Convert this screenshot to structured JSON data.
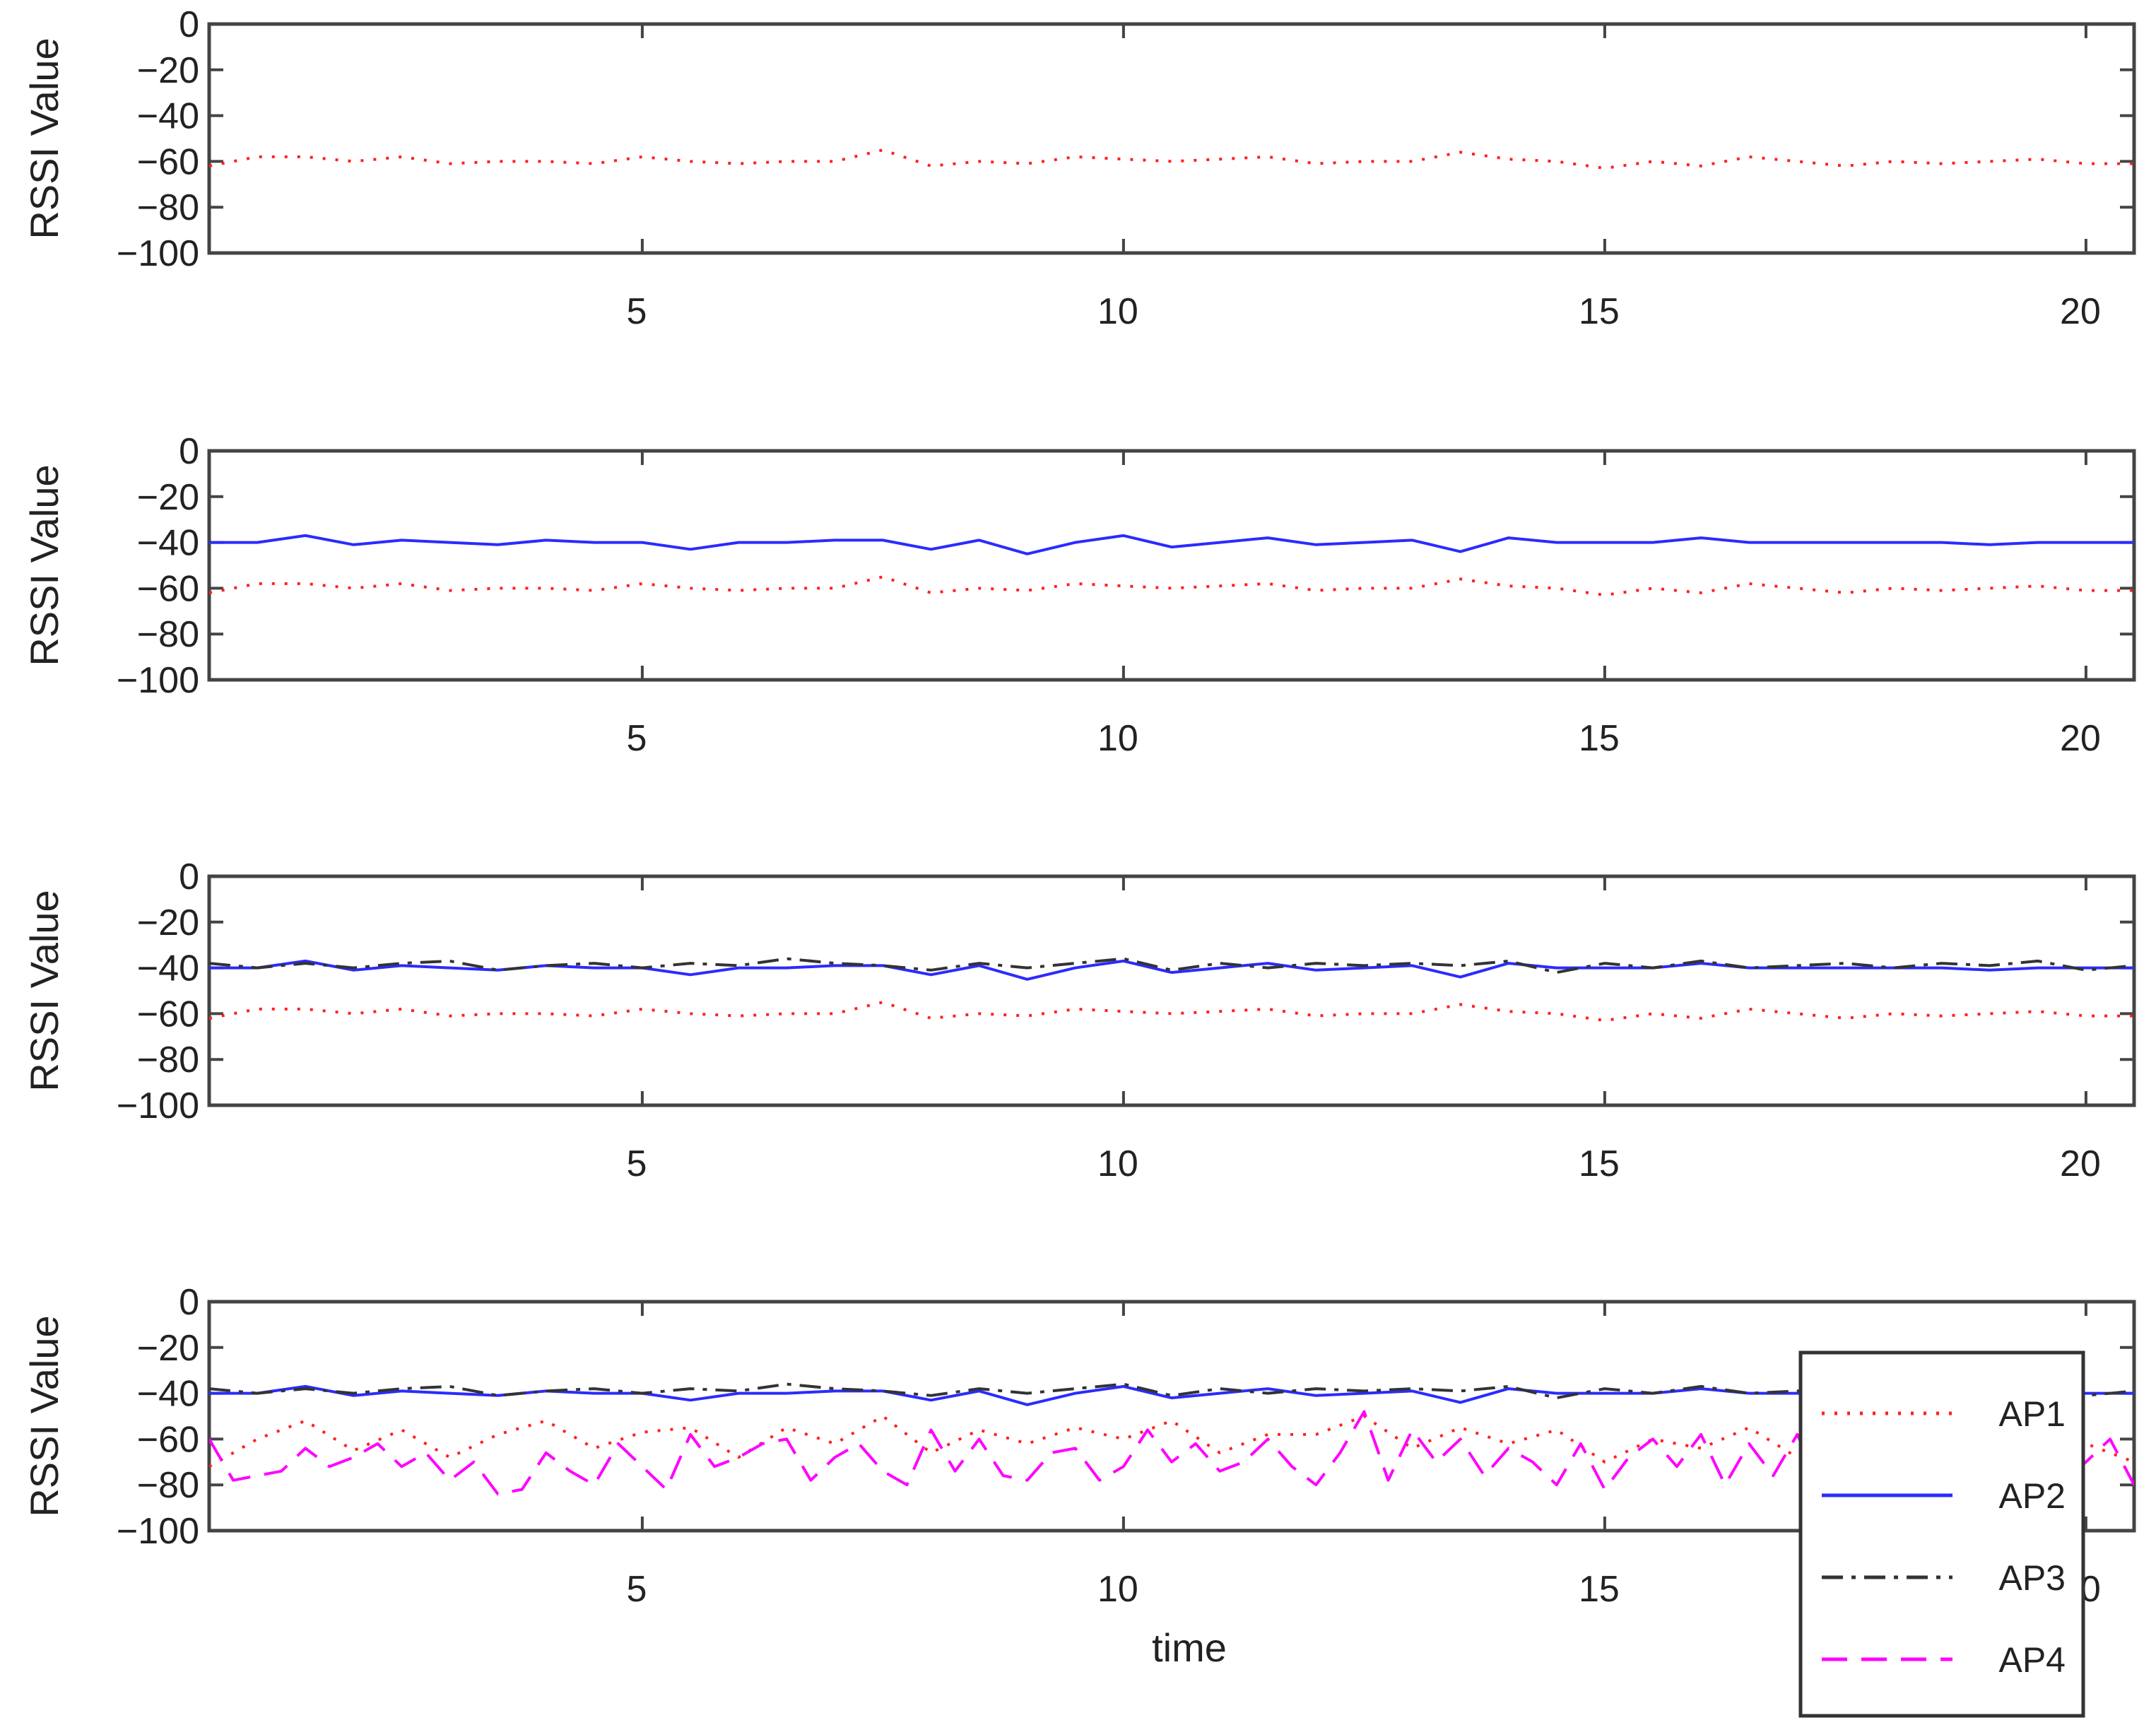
{
  "chart_data": [
    {
      "type": "line",
      "ylabel": "RSSI Value",
      "xlabel": "",
      "xlim": [
        0.5,
        20.5
      ],
      "ylim": [
        -100,
        0
      ],
      "xticks": [
        "5",
        "10",
        "15",
        "20"
      ],
      "yticks": [
        "0",
        "−20",
        "−40",
        "−60",
        "−80",
        "−100"
      ],
      "series": [
        {
          "key": "AP1",
          "color": "#ff2020",
          "dash": "dotted",
          "x": [
            0.5,
            1,
            1.5,
            2,
            2.5,
            3,
            3.5,
            4,
            4.5,
            5,
            5.5,
            6,
            6.5,
            7,
            7.5,
            8,
            8.5,
            9,
            9.5,
            10,
            10.5,
            11,
            11.5,
            12,
            12.5,
            13,
            13.5,
            14,
            14.5,
            15,
            15.5,
            16,
            16.5,
            17,
            17.5,
            18,
            18.5,
            19,
            19.5,
            20,
            20.5
          ],
          "y": [
            -62,
            -58,
            -58,
            -60,
            -58,
            -61,
            -60,
            -60,
            -61,
            -58,
            -60,
            -61,
            -60,
            -60,
            -55,
            -62,
            -60,
            -61,
            -58,
            -59,
            -60,
            -59,
            -58,
            -61,
            -60,
            -60,
            -56,
            -59,
            -60,
            -63,
            -60,
            -62,
            -58,
            -60,
            -62,
            -60,
            -61,
            -60,
            -59,
            -61,
            -61
          ]
        }
      ]
    },
    {
      "type": "line",
      "ylabel": "RSSI Value",
      "xlabel": "",
      "xlim": [
        0.5,
        20.5
      ],
      "ylim": [
        -100,
        0
      ],
      "xticks": [
        "5",
        "10",
        "15",
        "20"
      ],
      "yticks": [
        "0",
        "−20",
        "−40",
        "−60",
        "−80",
        "−100"
      ],
      "series": [
        {
          "key": "AP1",
          "color": "#ff2020",
          "dash": "dotted",
          "x": [
            0.5,
            1,
            1.5,
            2,
            2.5,
            3,
            3.5,
            4,
            4.5,
            5,
            5.5,
            6,
            6.5,
            7,
            7.5,
            8,
            8.5,
            9,
            9.5,
            10,
            10.5,
            11,
            11.5,
            12,
            12.5,
            13,
            13.5,
            14,
            14.5,
            15,
            15.5,
            16,
            16.5,
            17,
            17.5,
            18,
            18.5,
            19,
            19.5,
            20,
            20.5
          ],
          "y": [
            -62,
            -58,
            -58,
            -60,
            -58,
            -61,
            -60,
            -60,
            -61,
            -58,
            -60,
            -61,
            -60,
            -60,
            -55,
            -62,
            -60,
            -61,
            -58,
            -59,
            -60,
            -59,
            -58,
            -61,
            -60,
            -60,
            -56,
            -59,
            -60,
            -63,
            -60,
            -62,
            -58,
            -60,
            -62,
            -60,
            -61,
            -60,
            -59,
            -61,
            -61
          ]
        },
        {
          "key": "AP2",
          "color": "#2b2bff",
          "dash": "solid",
          "x": [
            0.5,
            1,
            1.5,
            2,
            2.5,
            3,
            3.5,
            4,
            4.5,
            5,
            5.5,
            6,
            6.5,
            7,
            7.5,
            8,
            8.5,
            9,
            9.5,
            10,
            10.5,
            11,
            11.5,
            12,
            12.5,
            13,
            13.5,
            14,
            14.5,
            15,
            15.5,
            16,
            16.5,
            17,
            17.5,
            18,
            18.5,
            19,
            19.5,
            20,
            20.5
          ],
          "y": [
            -40,
            -40,
            -37,
            -41,
            -39,
            -40,
            -41,
            -39,
            -40,
            -40,
            -43,
            -40,
            -40,
            -39,
            -39,
            -43,
            -39,
            -45,
            -40,
            -37,
            -42,
            -40,
            -38,
            -41,
            -40,
            -39,
            -44,
            -38,
            -40,
            -40,
            -40,
            -38,
            -40,
            -40,
            -40,
            -40,
            -40,
            -41,
            -40,
            -40,
            -40
          ]
        }
      ]
    },
    {
      "type": "line",
      "ylabel": "RSSI Value",
      "xlabel": "",
      "xlim": [
        0.5,
        20.5
      ],
      "ylim": [
        -100,
        0
      ],
      "xticks": [
        "5",
        "10",
        "15",
        "20"
      ],
      "yticks": [
        "0",
        "−20",
        "−40",
        "−60",
        "−80",
        "−100"
      ],
      "series": [
        {
          "key": "AP1",
          "color": "#ff2020",
          "dash": "dotted",
          "x": [
            0.5,
            1,
            1.5,
            2,
            2.5,
            3,
            3.5,
            4,
            4.5,
            5,
            5.5,
            6,
            6.5,
            7,
            7.5,
            8,
            8.5,
            9,
            9.5,
            10,
            10.5,
            11,
            11.5,
            12,
            12.5,
            13,
            13.5,
            14,
            14.5,
            15,
            15.5,
            16,
            16.5,
            17,
            17.5,
            18,
            18.5,
            19,
            19.5,
            20,
            20.5
          ],
          "y": [
            -62,
            -58,
            -58,
            -60,
            -58,
            -61,
            -60,
            -60,
            -61,
            -58,
            -60,
            -61,
            -60,
            -60,
            -55,
            -62,
            -60,
            -61,
            -58,
            -59,
            -60,
            -59,
            -58,
            -61,
            -60,
            -60,
            -56,
            -59,
            -60,
            -63,
            -60,
            -62,
            -58,
            -60,
            -62,
            -60,
            -61,
            -60,
            -59,
            -61,
            -61
          ]
        },
        {
          "key": "AP2",
          "color": "#2b2bff",
          "dash": "solid",
          "x": [
            0.5,
            1,
            1.5,
            2,
            2.5,
            3,
            3.5,
            4,
            4.5,
            5,
            5.5,
            6,
            6.5,
            7,
            7.5,
            8,
            8.5,
            9,
            9.5,
            10,
            10.5,
            11,
            11.5,
            12,
            12.5,
            13,
            13.5,
            14,
            14.5,
            15,
            15.5,
            16,
            16.5,
            17,
            17.5,
            18,
            18.5,
            19,
            19.5,
            20,
            20.5
          ],
          "y": [
            -40,
            -40,
            -37,
            -41,
            -39,
            -40,
            -41,
            -39,
            -40,
            -40,
            -43,
            -40,
            -40,
            -39,
            -39,
            -43,
            -39,
            -45,
            -40,
            -37,
            -42,
            -40,
            -38,
            -41,
            -40,
            -39,
            -44,
            -38,
            -40,
            -40,
            -40,
            -38,
            -40,
            -40,
            -40,
            -40,
            -40,
            -41,
            -40,
            -40,
            -40
          ]
        },
        {
          "key": "AP3",
          "color": "#333333",
          "dash": "dashdot",
          "x": [
            0.5,
            1,
            1.5,
            2,
            2.5,
            3,
            3.5,
            4,
            4.5,
            5,
            5.5,
            6,
            6.5,
            7,
            7.5,
            8,
            8.5,
            9,
            9.5,
            10,
            10.5,
            11,
            11.5,
            12,
            12.5,
            13,
            13.5,
            14,
            14.5,
            15,
            15.5,
            16,
            16.5,
            17,
            17.5,
            18,
            18.5,
            19,
            19.5,
            20,
            20.5
          ],
          "y": [
            -38,
            -40,
            -38,
            -40,
            -38,
            -37,
            -41,
            -39,
            -38,
            -40,
            -38,
            -39,
            -36,
            -38,
            -39,
            -41,
            -38,
            -40,
            -38,
            -36,
            -41,
            -38,
            -40,
            -38,
            -39,
            -38,
            -39,
            -37,
            -42,
            -38,
            -40,
            -37,
            -40,
            -39,
            -38,
            -40,
            -38,
            -39,
            -37,
            -41,
            -39
          ]
        }
      ]
    },
    {
      "type": "line",
      "ylabel": "RSSI Value",
      "xlabel": "time",
      "xlim": [
        0.5,
        20.5
      ],
      "ylim": [
        -100,
        0
      ],
      "xticks": [
        "5",
        "10",
        "15",
        "20"
      ],
      "yticks": [
        "0",
        "−20",
        "−40",
        "−60",
        "−80",
        "−100"
      ],
      "legend": {
        "position": "bottom-right",
        "entries": [
          "AP1",
          "AP2",
          "AP3",
          "AP4"
        ]
      },
      "series": [
        {
          "key": "AP1",
          "color": "#ff2020",
          "dash": "dotted",
          "x": [
            0.5,
            1,
            1.5,
            2,
            2.5,
            3,
            3.5,
            4,
            4.5,
            5,
            5.5,
            6,
            6.5,
            7,
            7.5,
            8,
            8.5,
            9,
            9.5,
            10,
            10.5,
            11,
            11.5,
            12,
            12.5,
            13,
            13.5,
            14,
            14.5,
            15,
            15.5,
            16,
            16.5,
            17,
            17.5,
            18,
            18.5,
            19,
            19.5,
            20,
            20.5
          ],
          "y": [
            -72,
            -60,
            -52,
            -65,
            -56,
            -68,
            -58,
            -52,
            -64,
            -57,
            -55,
            -68,
            -55,
            -62,
            -50,
            -66,
            -56,
            -62,
            -55,
            -60,
            -52,
            -66,
            -58,
            -58,
            -50,
            -64,
            -55,
            -62,
            -56,
            -70,
            -60,
            -64,
            -55,
            -68,
            -56,
            -62,
            -58,
            -60,
            -55,
            -62,
            -70
          ]
        },
        {
          "key": "AP2",
          "color": "#2b2bff",
          "dash": "solid",
          "x": [
            0.5,
            1,
            1.5,
            2,
            2.5,
            3,
            3.5,
            4,
            4.5,
            5,
            5.5,
            6,
            6.5,
            7,
            7.5,
            8,
            8.5,
            9,
            9.5,
            10,
            10.5,
            11,
            11.5,
            12,
            12.5,
            13,
            13.5,
            14,
            14.5,
            15,
            15.5,
            16,
            16.5,
            17,
            17.5,
            18,
            18.5,
            19,
            19.5,
            20,
            20.5
          ],
          "y": [
            -40,
            -40,
            -37,
            -41,
            -39,
            -40,
            -41,
            -39,
            -40,
            -40,
            -43,
            -40,
            -40,
            -39,
            -39,
            -43,
            -39,
            -45,
            -40,
            -37,
            -42,
            -40,
            -38,
            -41,
            -40,
            -39,
            -44,
            -38,
            -40,
            -40,
            -40,
            -38,
            -40,
            -40,
            -40,
            -40,
            -40,
            -41,
            -40,
            -40,
            -40
          ]
        },
        {
          "key": "AP3",
          "color": "#333333",
          "dash": "dashdot",
          "x": [
            0.5,
            1,
            1.5,
            2,
            2.5,
            3,
            3.5,
            4,
            4.5,
            5,
            5.5,
            6,
            6.5,
            7,
            7.5,
            8,
            8.5,
            9,
            9.5,
            10,
            10.5,
            11,
            11.5,
            12,
            12.5,
            13,
            13.5,
            14,
            14.5,
            15,
            15.5,
            16,
            16.5,
            17,
            17.5,
            18,
            18.5,
            19,
            19.5,
            20,
            20.5
          ],
          "y": [
            -38,
            -40,
            -38,
            -40,
            -38,
            -37,
            -41,
            -39,
            -38,
            -40,
            -38,
            -39,
            -36,
            -38,
            -39,
            -41,
            -38,
            -40,
            -38,
            -36,
            -41,
            -38,
            -40,
            -38,
            -39,
            -38,
            -39,
            -37,
            -42,
            -38,
            -40,
            -37,
            -40,
            -39,
            -38,
            -40,
            -38,
            -39,
            -37,
            -41,
            -39
          ]
        },
        {
          "key": "AP4",
          "color": "#ff00ff",
          "dash": "dashed",
          "x": [
            0.5,
            0.75,
            1,
            1.25,
            1.5,
            1.75,
            2,
            2.25,
            2.5,
            2.75,
            3,
            3.25,
            3.5,
            3.75,
            4,
            4.25,
            4.5,
            4.75,
            5,
            5.25,
            5.5,
            5.75,
            6,
            6.25,
            6.5,
            6.75,
            7,
            7.25,
            7.5,
            7.75,
            8,
            8.25,
            8.5,
            8.75,
            9,
            9.25,
            9.5,
            9.75,
            10,
            10.25,
            10.5,
            10.75,
            11,
            11.25,
            11.5,
            11.75,
            12,
            12.25,
            12.5,
            12.75,
            13,
            13.25,
            13.5,
            13.75,
            14,
            14.25,
            14.5,
            14.75,
            15,
            15.25,
            15.5,
            15.75,
            16,
            16.25,
            16.5,
            16.75,
            17,
            17.25,
            17.5,
            17.75,
            18,
            18.25,
            18.5,
            18.75,
            19,
            19.25,
            19.5,
            19.75,
            20,
            20.25,
            20.5
          ],
          "y": [
            -60,
            -78,
            -76,
            -74,
            -64,
            -72,
            -68,
            -62,
            -72,
            -66,
            -78,
            -70,
            -84,
            -82,
            -66,
            -74,
            -80,
            -62,
            -72,
            -82,
            -58,
            -72,
            -68,
            -62,
            -60,
            -78,
            -68,
            -62,
            -74,
            -80,
            -56,
            -74,
            -60,
            -76,
            -78,
            -66,
            -64,
            -78,
            -72,
            -56,
            -70,
            -62,
            -74,
            -70,
            -60,
            -72,
            -80,
            -66,
            -48,
            -78,
            -56,
            -70,
            -60,
            -76,
            -64,
            -70,
            -80,
            -62,
            -82,
            -68,
            -60,
            -72,
            -58,
            -80,
            -62,
            -76,
            -58,
            -80,
            -70,
            -60,
            -74,
            -82,
            -62,
            -74,
            -64,
            -72,
            -56,
            -80,
            -70,
            -60,
            -80
          ]
        }
      ]
    }
  ]
}
